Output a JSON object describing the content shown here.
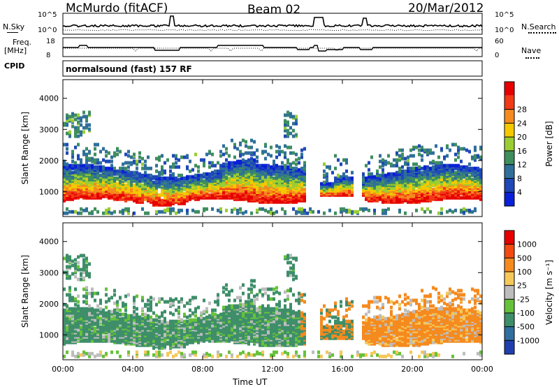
{
  "header": {
    "station": "McMurdo (fitACF)",
    "beam": "Beam 02",
    "date": "20/Mar/2012"
  },
  "noise_panel": {
    "left_label": "N.Sky",
    "right_label": "N.Search",
    "left_ticks": [
      "10^5",
      "10^0"
    ],
    "right_ticks": [
      "10^5",
      "10^0"
    ]
  },
  "freq_panel": {
    "left_label_1": "Freq.",
    "left_label_2": "[MHz]",
    "right_label": "Nave",
    "left_ticks": [
      "18",
      "8"
    ],
    "right_ticks": [
      "60",
      "0"
    ]
  },
  "cpid": {
    "label": "CPID",
    "value": "normalsound (fast) 157 RF"
  },
  "chart_data": [
    {
      "type": "heatmap",
      "name": "power",
      "ylabel": "Slant Range [km]",
      "ylim": [
        200,
        4600
      ],
      "yticks": [
        "1000",
        "2000",
        "3000",
        "4000"
      ],
      "xticks": [
        "00:00",
        "04:00",
        "08:00",
        "12:00",
        "16:00",
        "20:00",
        "00:00"
      ],
      "colorbar": {
        "label": "Power [dB]",
        "ticks": [
          "4",
          "8",
          "12",
          "16",
          "20",
          "24",
          "28"
        ],
        "colors": [
          "#0a1fd8",
          "#1f48b8",
          "#2f6f9a",
          "#3e8e5e",
          "#9acd32",
          "#f5c800",
          "#f58a1e",
          "#f23a16",
          "#e60000"
        ]
      }
    },
    {
      "type": "heatmap",
      "name": "velocity",
      "ylabel": "Slant Range [km]",
      "ylim": [
        200,
        4600
      ],
      "yticks": [
        "1000",
        "2000",
        "3000",
        "4000"
      ],
      "xticks": [
        "00:00",
        "04:00",
        "08:00",
        "12:00",
        "16:00",
        "20:00",
        "00:00"
      ],
      "xlabel": "Time UT",
      "colorbar": {
        "label": "Velocity [m s⁻¹]",
        "ticks": [
          "1000",
          "500",
          "100",
          "25",
          "-25",
          "-100",
          "-500",
          "-1000"
        ],
        "colors": [
          "#1f3fb0",
          "#2f6fa0",
          "#3e8e6a",
          "#66c23a",
          "#bdbdbd",
          "#f5c85a",
          "#f58a1e",
          "#f24a10",
          "#e60000"
        ]
      }
    }
  ]
}
